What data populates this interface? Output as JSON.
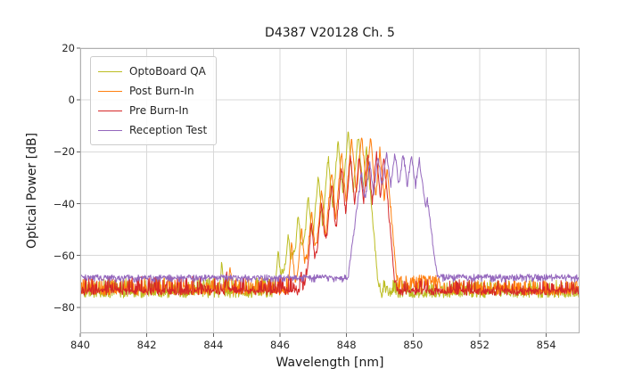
{
  "chart_data": {
    "type": "line",
    "title": "D4387 V20128 Ch. 5",
    "xlabel": "Wavelength [nm]",
    "ylabel": "Optical Power [dB]",
    "xlim": [
      840,
      855
    ],
    "ylim": [
      -90,
      20
    ],
    "xtick_values": [
      840,
      842,
      844,
      846,
      848,
      850,
      852,
      854
    ],
    "xtick_labels": [
      "840",
      "842",
      "844",
      "846",
      "848",
      "850",
      "852",
      "854"
    ],
    "ytick_values": [
      20,
      0,
      -20,
      -40,
      -60,
      -80
    ],
    "ytick_labels": [
      "20",
      "0",
      "−20",
      "−40",
      "−60",
      "−80"
    ],
    "grid": true,
    "grid_color": "#d9d9d9",
    "spine_color": "#b0b0b0",
    "legend_position": "upper left",
    "series": [
      {
        "name": "OptoBoard QA",
        "color": "#bcbd22",
        "seed": 11,
        "peak_slope": 150,
        "noise_floor": [
          {
            "from": 840.0,
            "to": 845.8,
            "level": -74,
            "amp": 5.5,
            "spike_prob": 0.1,
            "spike_depth": 8
          },
          {
            "from": 845.8,
            "to": 849.2,
            "level": -72,
            "amp": 4.0,
            "spike_prob": 0.02,
            "spike_depth": 6
          },
          {
            "from": 849.2,
            "to": 855.0,
            "level": -75,
            "amp": 5.5,
            "spike_prob": 0.12,
            "spike_depth": 8
          }
        ],
        "pedestal": {
          "center": 847.4,
          "half_width": 1.65,
          "top": -50,
          "base": -75
        },
        "peaks": [
          [
            844.25,
            -62.5
          ],
          [
            845.95,
            -58
          ],
          [
            846.25,
            -51
          ],
          [
            846.55,
            -44
          ],
          [
            846.85,
            -37
          ],
          [
            847.15,
            -29
          ],
          [
            847.45,
            -22
          ],
          [
            847.75,
            -15.5
          ],
          [
            848.05,
            -12
          ],
          [
            848.35,
            -13
          ],
          [
            848.6,
            -18.5
          ]
        ]
      },
      {
        "name": "Post Burn-In",
        "color": "#ff7f0e",
        "seed": 22,
        "peak_slope": 150,
        "noise_floor": [
          {
            "from": 840.0,
            "to": 846.2,
            "level": -73.5,
            "amp": 5.0,
            "spike_prob": 0.08,
            "spike_depth": 8
          },
          {
            "from": 846.2,
            "to": 849.5,
            "level": -71,
            "amp": 4.0,
            "spike_prob": 0.02,
            "spike_depth": 6
          },
          {
            "from": 849.5,
            "to": 850.8,
            "level": -70.5,
            "amp": 3.0,
            "spike_prob": 0.05,
            "spike_depth": 6
          },
          {
            "from": 850.8,
            "to": 855.0,
            "level": -74,
            "amp": 4.5,
            "spike_prob": 0.08,
            "spike_depth": 8
          }
        ],
        "pedestal": {
          "center": 847.9,
          "half_width": 1.6,
          "top": -49,
          "base": -74
        },
        "peaks": [
          [
            844.5,
            -63.5
          ],
          [
            846.35,
            -55
          ],
          [
            846.65,
            -49
          ],
          [
            846.95,
            -42
          ],
          [
            847.25,
            -34.5
          ],
          [
            847.55,
            -27
          ],
          [
            847.85,
            -20
          ],
          [
            848.15,
            -14.5
          ],
          [
            848.45,
            -13
          ],
          [
            848.72,
            -14
          ],
          [
            849.0,
            -19
          ],
          [
            849.22,
            -26
          ]
        ]
      },
      {
        "name": "Pre Burn-In",
        "color": "#d62728",
        "seed": 33,
        "peak_slope": 150,
        "noise_floor": [
          {
            "from": 840.0,
            "to": 846.6,
            "level": -75,
            "amp": 7.0,
            "spike_prob": 0.22,
            "spike_depth": 11
          },
          {
            "from": 846.6,
            "to": 849.2,
            "level": -70,
            "amp": 5.0,
            "spike_prob": 0.05,
            "spike_depth": 8
          },
          {
            "from": 849.2,
            "to": 855.0,
            "level": -77,
            "amp": 8.0,
            "spike_prob": 0.25,
            "spike_depth": 11
          }
        ],
        "pedestal": {
          "center": 848.1,
          "half_width": 1.45,
          "top": -46,
          "base": -74
        },
        "peaks": [
          [
            844.4,
            -66.5
          ],
          [
            846.95,
            -47
          ],
          [
            847.25,
            -39
          ],
          [
            847.55,
            -31.5
          ],
          [
            847.85,
            -25.5
          ],
          [
            848.12,
            -21.5
          ],
          [
            848.38,
            -20.5
          ],
          [
            848.64,
            -20
          ],
          [
            848.9,
            -20.5
          ],
          [
            849.12,
            -21.5
          ]
        ]
      },
      {
        "name": "Reception Test",
        "color": "#9467bd",
        "seed": 44,
        "peak_slope": 100,
        "noise_floor": [
          {
            "from": 840.0,
            "to": 848.2,
            "level": -68.8,
            "amp": 1.4,
            "spike_prob": 0.02,
            "spike_depth": 3
          },
          {
            "from": 848.2,
            "to": 850.6,
            "level": -67,
            "amp": 1.2,
            "spike_prob": 0.0,
            "spike_depth": 0
          },
          {
            "from": 850.6,
            "to": 855.0,
            "level": -68.6,
            "amp": 1.4,
            "spike_prob": 0.02,
            "spike_depth": 3
          }
        ],
        "pedestal": {
          "center": 849.35,
          "half_width": 1.05,
          "top": -33,
          "base": -69
        },
        "peaks": [
          [
            848.45,
            -28
          ],
          [
            848.7,
            -24
          ],
          [
            848.95,
            -22
          ],
          [
            849.2,
            -21
          ],
          [
            849.45,
            -20.5
          ],
          [
            849.7,
            -20.5
          ],
          [
            849.95,
            -21
          ],
          [
            850.18,
            -22.5
          ],
          [
            850.42,
            -38
          ]
        ]
      }
    ]
  }
}
